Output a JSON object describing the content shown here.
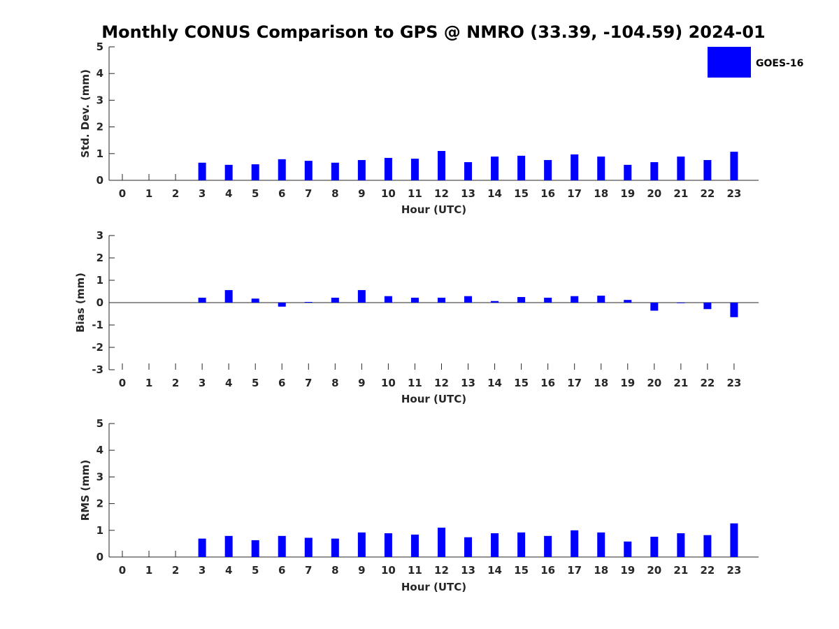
{
  "figure": {
    "title": "Monthly CONUS Comparison to GPS @ NMRO (33.39, -104.59) 2024-01"
  },
  "legend": {
    "label": "GOES-16",
    "color": "#0000ff",
    "placement": "top-right"
  },
  "chart_data": [
    {
      "type": "bar",
      "xlabel": "Hour (UTC)",
      "ylabel": "Std. Dev. (mm)",
      "ylim": [
        0,
        5
      ],
      "yticks": [
        0,
        1,
        2,
        3,
        4,
        5
      ],
      "categories": [
        0,
        1,
        2,
        3,
        4,
        5,
        6,
        7,
        8,
        9,
        10,
        11,
        12,
        13,
        14,
        15,
        16,
        17,
        18,
        19,
        20,
        21,
        22,
        23
      ],
      "series": [
        {
          "name": "GOES-16",
          "values": [
            null,
            null,
            null,
            0.66,
            0.58,
            0.6,
            0.79,
            0.73,
            0.66,
            0.76,
            0.84,
            0.81,
            1.1,
            0.68,
            0.89,
            0.92,
            0.76,
            0.97,
            0.89,
            0.58,
            0.68,
            0.89,
            0.76,
            1.07
          ]
        }
      ]
    },
    {
      "type": "bar",
      "xlabel": "Hour (UTC)",
      "ylabel": "Bias (mm)",
      "ylim": [
        -3,
        3
      ],
      "yticks": [
        -3,
        -2,
        -1,
        0,
        1,
        2,
        3
      ],
      "categories": [
        0,
        1,
        2,
        3,
        4,
        5,
        6,
        7,
        8,
        9,
        10,
        11,
        12,
        13,
        14,
        15,
        16,
        17,
        18,
        19,
        20,
        21,
        22,
        23
      ],
      "series": [
        {
          "name": "GOES-16",
          "values": [
            null,
            null,
            null,
            0.22,
            0.56,
            0.18,
            -0.18,
            0.03,
            0.22,
            0.56,
            0.29,
            0.22,
            0.22,
            0.29,
            0.07,
            0.25,
            0.22,
            0.29,
            0.31,
            0.12,
            -0.36,
            0.0,
            -0.29,
            -0.65
          ]
        }
      ]
    },
    {
      "type": "bar",
      "xlabel": "Hour (UTC)",
      "ylabel": "RMS (mm)",
      "ylim": [
        0,
        5
      ],
      "yticks": [
        0,
        1,
        2,
        3,
        4,
        5
      ],
      "categories": [
        0,
        1,
        2,
        3,
        4,
        5,
        6,
        7,
        8,
        9,
        10,
        11,
        12,
        13,
        14,
        15,
        16,
        17,
        18,
        19,
        20,
        21,
        22,
        23
      ],
      "series": [
        {
          "name": "GOES-16",
          "values": [
            null,
            null,
            null,
            0.69,
            0.79,
            0.63,
            0.79,
            0.72,
            0.69,
            0.92,
            0.89,
            0.84,
            1.1,
            0.74,
            0.89,
            0.92,
            0.79,
            1.0,
            0.92,
            0.58,
            0.76,
            0.89,
            0.82,
            1.26
          ]
        }
      ]
    }
  ]
}
